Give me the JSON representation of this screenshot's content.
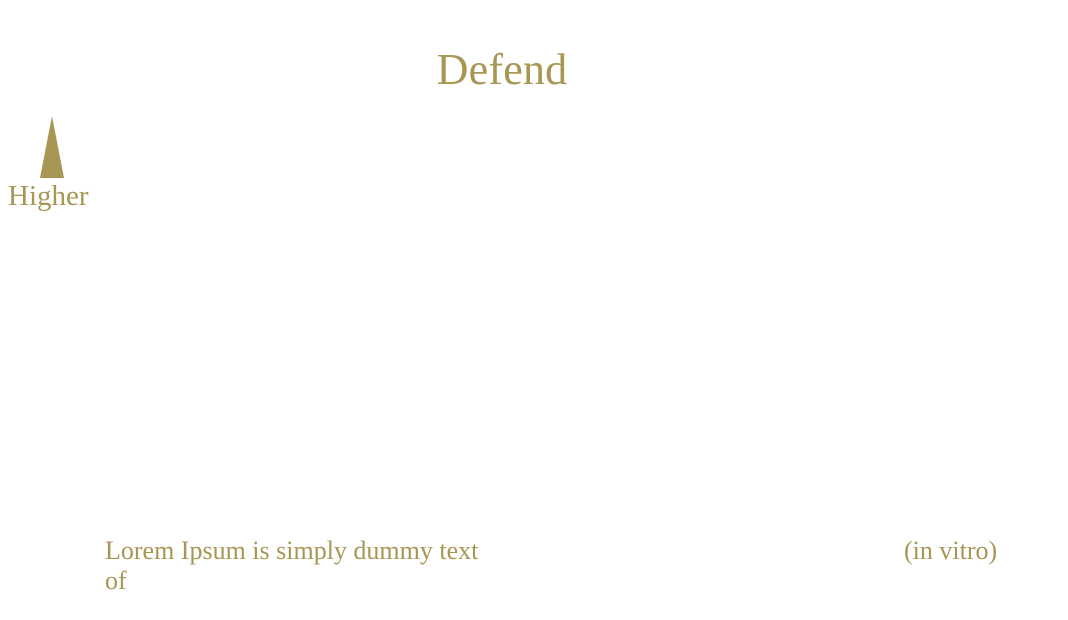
{
  "title": "Defend",
  "axis": {
    "direction_label": "Higher",
    "arrow_icon": "up-arrow-icon"
  },
  "footnote": {
    "text": "Lorem Ipsum is simply dummy text of"
  },
  "side_note": {
    "text": "(in vitro)"
  },
  "colors": {
    "accent": "#a89655",
    "background": "#ffffff"
  }
}
